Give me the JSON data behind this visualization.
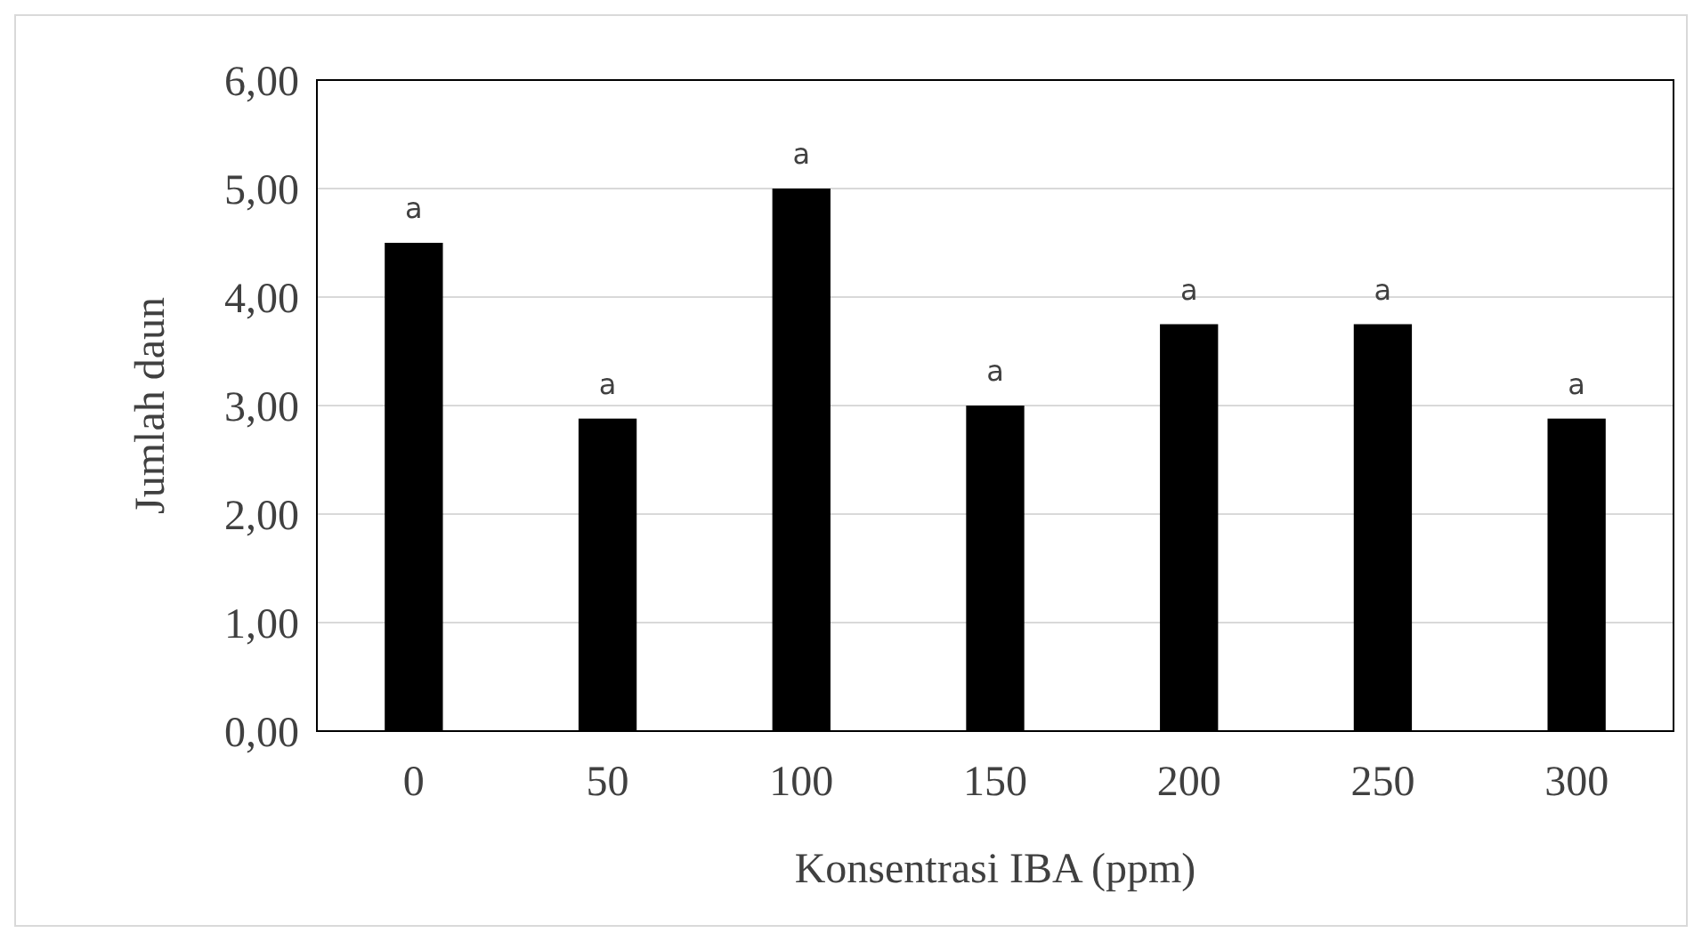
{
  "chart_data": {
    "type": "bar",
    "xlabel": "Konsentrasi IBA (ppm)",
    "ylabel": "Jumlah daun",
    "categories": [
      "0",
      "50",
      "100",
      "150",
      "200",
      "250",
      "300"
    ],
    "values": [
      4.5,
      2.88,
      5.0,
      3.0,
      3.75,
      3.75,
      2.88
    ],
    "color": "#000000",
    "ylim": [
      0,
      6
    ],
    "yticks": [
      {
        "value": 0,
        "label": "0,00"
      },
      {
        "value": 1,
        "label": "1,00"
      },
      {
        "value": 2,
        "label": "2,00"
      },
      {
        "value": 3,
        "label": "3,00"
      },
      {
        "value": 4,
        "label": "4,00"
      },
      {
        "value": 5,
        "label": "5,00"
      },
      {
        "value": 6,
        "label": "6,00"
      }
    ],
    "grid": "y",
    "annotations": [
      {
        "text": "a",
        "x": "0",
        "y": 4.5
      },
      {
        "text": "a",
        "x": "50",
        "y": 2.88
      },
      {
        "text": "a",
        "x": "100",
        "y": 5.0
      },
      {
        "text": "a",
        "x": "150",
        "y": 3.0
      },
      {
        "text": "a",
        "x": "200",
        "y": 3.75
      },
      {
        "text": "a",
        "x": "250",
        "y": 3.75
      },
      {
        "text": "a",
        "x": "300",
        "y": 2.88
      }
    ]
  }
}
